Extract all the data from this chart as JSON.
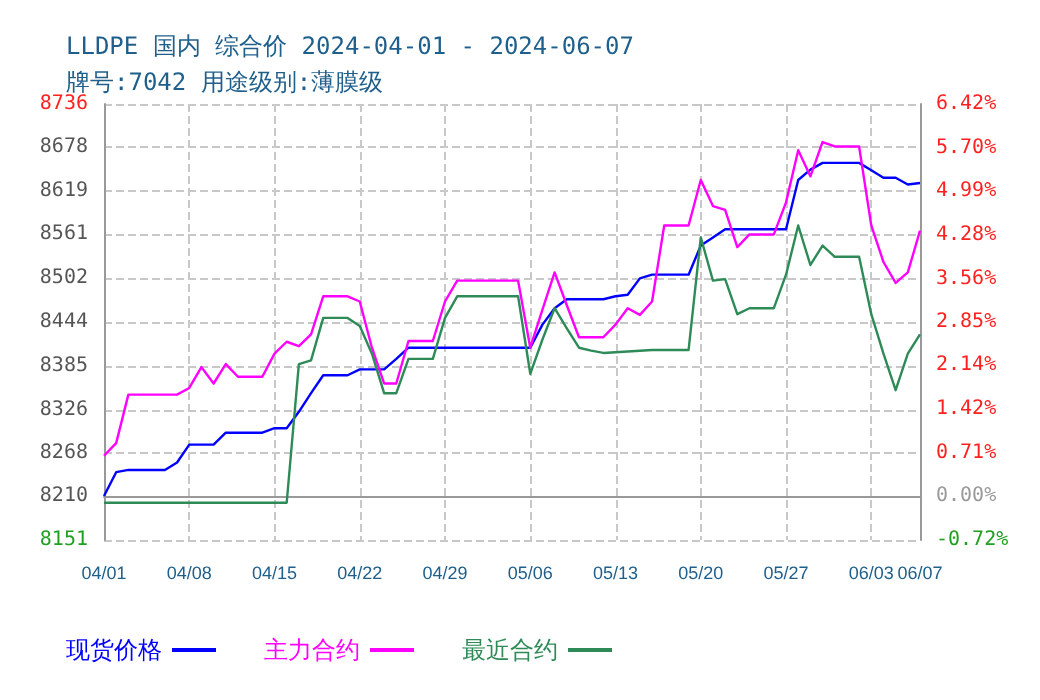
{
  "chart_data": {
    "type": "line",
    "title": "LLDPE 国内 综合价 2024-04-01 - 2024-06-07",
    "subtitle": "牌号:7042 用途级别:薄膜级",
    "x": [
      "2024-04-01",
      "2024-04-02",
      "2024-04-03",
      "2024-04-04",
      "2024-04-05",
      "2024-04-06",
      "2024-04-07",
      "2024-04-08",
      "2024-04-09",
      "2024-04-10",
      "2024-04-11",
      "2024-04-12",
      "2024-04-13",
      "2024-04-14",
      "2024-04-15",
      "2024-04-16",
      "2024-04-17",
      "2024-04-18",
      "2024-04-19",
      "2024-04-20",
      "2024-04-21",
      "2024-04-22",
      "2024-04-23",
      "2024-04-24",
      "2024-04-25",
      "2024-04-26",
      "2024-04-27",
      "2024-04-28",
      "2024-04-29",
      "2024-04-30",
      "2024-05-01",
      "2024-05-02",
      "2024-05-03",
      "2024-05-04",
      "2024-05-05",
      "2024-05-06",
      "2024-05-07",
      "2024-05-08",
      "2024-05-09",
      "2024-05-10",
      "2024-05-11",
      "2024-05-12",
      "2024-05-13",
      "2024-05-14",
      "2024-05-15",
      "2024-05-16",
      "2024-05-17",
      "2024-05-18",
      "2024-05-19",
      "2024-05-20",
      "2024-05-21",
      "2024-05-22",
      "2024-05-23",
      "2024-05-24",
      "2024-05-25",
      "2024-05-26",
      "2024-05-27",
      "2024-05-28",
      "2024-05-29",
      "2024-05-30",
      "2024-05-31",
      "2024-06-01",
      "2024-06-02",
      "2024-06-03",
      "2024-06-04",
      "2024-06-05",
      "2024-06-06",
      "2024-06-07"
    ],
    "series": [
      {
        "name": "现货价格",
        "color": "#0000ff",
        "values": [
          8210,
          8242,
          8245,
          8245,
          8245,
          8245,
          8255,
          8279,
          8279,
          8279,
          8295,
          8295,
          8295,
          8295,
          8301,
          8301,
          8323,
          8348,
          8372,
          8372,
          8372,
          8380,
          8380,
          8380,
          8394,
          8409,
          8409,
          8409,
          8409,
          8409,
          8409,
          8409,
          8409,
          8409,
          8409,
          8409,
          8440,
          8462,
          8474,
          8474,
          8474,
          8474,
          8478,
          8480,
          8502,
          8507,
          8507,
          8507,
          8507,
          8546,
          8557,
          8568,
          8568,
          8568,
          8568,
          8568,
          8568,
          8634,
          8648,
          8657,
          8657,
          8657,
          8657,
          8647,
          8637,
          8637,
          8628,
          8630
        ]
      },
      {
        "name": "主力合约",
        "color": "#ff00ff",
        "values": [
          8264,
          8281,
          8346,
          8346,
          8346,
          8346,
          8346,
          8355,
          8383,
          8361,
          8387,
          8370,
          8370,
          8370,
          8401,
          8417,
          8411,
          8427,
          8478,
          8478,
          8478,
          8471,
          8409,
          8361,
          8361,
          8418,
          8418,
          8418,
          8471,
          8499,
          8499,
          8499,
          8499,
          8499,
          8499,
          8409,
          8460,
          8510,
          8466,
          8423,
          8423,
          8423,
          8440,
          8462,
          8453,
          8471,
          8573,
          8573,
          8573,
          8634,
          8599,
          8594,
          8544,
          8561,
          8561,
          8561,
          8604,
          8674,
          8639,
          8685,
          8679,
          8679,
          8679,
          8573,
          8524,
          8496,
          8510,
          8566
        ]
      },
      {
        "name": "最近合约",
        "color": "#2e8b57",
        "values": [
          8201,
          8201,
          8201,
          8201,
          8201,
          8201,
          8201,
          8201,
          8201,
          8201,
          8201,
          8201,
          8201,
          8201,
          8201,
          8201,
          8387,
          8392,
          8449,
          8449,
          8449,
          8438,
          8401,
          8348,
          8348,
          8394,
          8394,
          8394,
          8449,
          8478,
          8478,
          8478,
          8478,
          8478,
          8478,
          8374,
          8420,
          8462,
          8435,
          8409,
          8405,
          8402,
          8403,
          8404,
          8405,
          8406,
          8406,
          8406,
          8406,
          8557,
          8499,
          8501,
          8454,
          8462,
          8462,
          8462,
          8507,
          8573,
          8520,
          8546,
          8531,
          8531,
          8531,
          8454,
          8401,
          8352,
          8401,
          8427
        ]
      }
    ],
    "xlim": [
      "2024-04-01",
      "2024-06-07"
    ],
    "xticks": [
      {
        "value": "2024-04-01",
        "label": "04/01"
      },
      {
        "value": "2024-04-08",
        "label": "04/08"
      },
      {
        "value": "2024-04-15",
        "label": "04/15"
      },
      {
        "value": "2024-04-22",
        "label": "04/22"
      },
      {
        "value": "2024-04-29",
        "label": "04/29"
      },
      {
        "value": "2024-05-06",
        "label": "05/06"
      },
      {
        "value": "2024-05-13",
        "label": "05/13"
      },
      {
        "value": "2024-05-20",
        "label": "05/20"
      },
      {
        "value": "2024-05-27",
        "label": "05/27"
      },
      {
        "value": "2024-06-03",
        "label": "06/03"
      },
      {
        "value": "2024-06-07",
        "label": "06/07"
      }
    ],
    "ylim": [
      8151,
      8736
    ],
    "yticks": [
      8151,
      8210,
      8268,
      8326,
      8385,
      8444,
      8502,
      8561,
      8619,
      8678,
      8736
    ],
    "y2lim": [
      -0.72,
      6.42
    ],
    "y2ticks": [
      {
        "value": -0.72,
        "label": "-0.72%"
      },
      {
        "value": 0,
        "label": "0.00%"
      },
      {
        "value": 0.71,
        "label": "0.71%"
      },
      {
        "value": 1.42,
        "label": "1.42%"
      },
      {
        "value": 2.14,
        "label": "2.14%"
      },
      {
        "value": 2.85,
        "label": "2.85%"
      },
      {
        "value": 3.56,
        "label": "3.56%"
      },
      {
        "value": 4.28,
        "label": "4.28%"
      },
      {
        "value": 4.99,
        "label": "4.99%"
      },
      {
        "value": 5.7,
        "label": "5.70%"
      },
      {
        "value": 6.42,
        "label": "6.42%"
      }
    ],
    "grid": true,
    "legend": "bottom",
    "marker": "none",
    "line_style": "solid"
  }
}
